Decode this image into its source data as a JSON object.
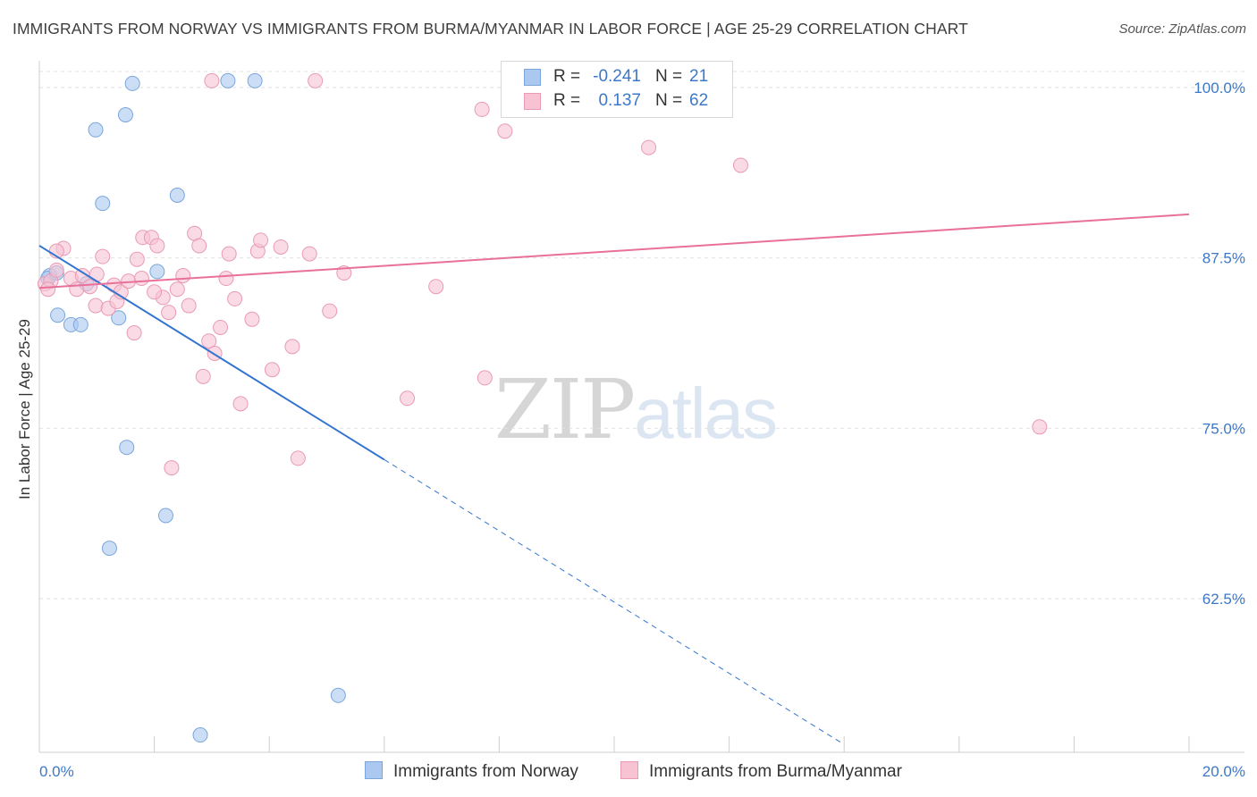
{
  "title": "IMMIGRANTS FROM NORWAY VS IMMIGRANTS FROM BURMA/MYANMAR IN LABOR FORCE | AGE 25-29 CORRELATION CHART",
  "source": "Source: ZipAtlas.com",
  "watermark": {
    "zip": "ZIP",
    "atlas": "atlas"
  },
  "legend": {
    "r_label": "R =",
    "n_label": "N =",
    "rows": [
      {
        "r": "-0.241",
        "n": "21",
        "color": "#aac8f0",
        "border": "#7aa6dc"
      },
      {
        "r": "0.137",
        "n": "62",
        "color": "#f7c3d3",
        "border": "#e99ab5"
      }
    ]
  },
  "chart_data": {
    "type": "scatter",
    "title": "IMMIGRANTS FROM NORWAY VS IMMIGRANTS FROM BURMA/MYANMAR IN LABOR FORCE | AGE 25-29 CORRELATION CHART",
    "xlabel": "",
    "ylabel": "In Labor Force | Age 25-29",
    "xlim": [
      0,
      20
    ],
    "ylim": [
      51.5,
      101.5
    ],
    "x_tick_labels": [
      "0.0%",
      "20.0%"
    ],
    "y_ticks": [
      100,
      87.5,
      75,
      62.5
    ],
    "y_tick_labels": [
      "100.0%",
      "87.5%",
      "75.0%",
      "62.5%"
    ],
    "grid": true,
    "legend_position": "top-center",
    "series": [
      {
        "name": "Immigrants from Norway",
        "color": "#aac8f0",
        "stroke": "#7aa6dc",
        "line_color": "#3374d0",
        "points": [
          [
            0.18,
            86.2
          ],
          [
            0.32,
            83.3
          ],
          [
            0.55,
            82.6
          ],
          [
            0.72,
            82.6
          ],
          [
            0.82,
            85.6
          ],
          [
            0.98,
            96.9
          ],
          [
            1.1,
            91.5
          ],
          [
            1.38,
            83.1
          ],
          [
            1.5,
            98.0
          ],
          [
            1.62,
            100.3
          ],
          [
            1.52,
            73.6
          ],
          [
            2.05,
            86.5
          ],
          [
            2.2,
            68.6
          ],
          [
            2.4,
            92.1
          ],
          [
            1.22,
            66.2
          ],
          [
            3.28,
            100.5
          ],
          [
            3.75,
            100.5
          ],
          [
            5.2,
            55.4
          ],
          [
            2.8,
            52.5
          ],
          [
            0.15,
            86.0
          ],
          [
            0.3,
            86.4
          ]
        ],
        "trend": {
          "x1": 0.0,
          "y1": 88.4,
          "x2": 6.0,
          "y2": 72.7,
          "dash_to_x": 14.0,
          "dash_to_y": 51.8
        }
      },
      {
        "name": "Immigrants from Burma/Myanmar",
        "color": "#f7c3d3",
        "stroke": "#e99ab5",
        "line_color": "#e8709a",
        "points": [
          [
            0.1,
            85.6
          ],
          [
            0.2,
            85.8
          ],
          [
            0.3,
            86.6
          ],
          [
            0.42,
            88.2
          ],
          [
            0.55,
            86.0
          ],
          [
            0.65,
            85.2
          ],
          [
            0.75,
            86.2
          ],
          [
            0.88,
            85.4
          ],
          [
            0.98,
            84.0
          ],
          [
            1.1,
            87.6
          ],
          [
            1.2,
            83.8
          ],
          [
            1.3,
            85.5
          ],
          [
            1.35,
            84.3
          ],
          [
            1.42,
            85.0
          ],
          [
            1.55,
            85.8
          ],
          [
            1.65,
            82.0
          ],
          [
            1.7,
            87.4
          ],
          [
            1.78,
            86.0
          ],
          [
            1.8,
            89.0
          ],
          [
            1.95,
            89.0
          ],
          [
            2.05,
            88.4
          ],
          [
            2.15,
            84.6
          ],
          [
            2.25,
            83.5
          ],
          [
            2.4,
            85.2
          ],
          [
            2.5,
            86.2
          ],
          [
            2.6,
            84.0
          ],
          [
            2.7,
            89.3
          ],
          [
            2.78,
            88.4
          ],
          [
            2.85,
            78.8
          ],
          [
            2.95,
            81.4
          ],
          [
            3.05,
            80.5
          ],
          [
            3.15,
            82.4
          ],
          [
            3.25,
            86.0
          ],
          [
            3.3,
            87.8
          ],
          [
            3.4,
            84.5
          ],
          [
            3.5,
            76.8
          ],
          [
            3.7,
            83.0
          ],
          [
            3.8,
            88.0
          ],
          [
            3.85,
            88.8
          ],
          [
            4.05,
            79.3
          ],
          [
            4.2,
            88.3
          ],
          [
            4.4,
            81.0
          ],
          [
            4.5,
            72.8
          ],
          [
            4.7,
            87.8
          ],
          [
            4.8,
            100.5
          ],
          [
            5.05,
            83.6
          ],
          [
            5.3,
            86.4
          ],
          [
            2.3,
            72.1
          ],
          [
            3.0,
            100.5
          ],
          [
            6.4,
            77.2
          ],
          [
            6.9,
            85.4
          ],
          [
            7.7,
            98.4
          ],
          [
            7.75,
            78.7
          ],
          [
            8.1,
            96.8
          ],
          [
            9.9,
            100.5
          ],
          [
            10.6,
            95.6
          ],
          [
            12.2,
            94.3
          ],
          [
            17.4,
            75.1
          ],
          [
            0.3,
            88.0
          ],
          [
            0.15,
            85.2
          ],
          [
            1.0,
            86.3
          ],
          [
            2.0,
            85.0
          ]
        ],
        "trend": {
          "x1": 0.0,
          "y1": 85.3,
          "x2": 20.0,
          "y2": 90.7
        }
      }
    ]
  }
}
